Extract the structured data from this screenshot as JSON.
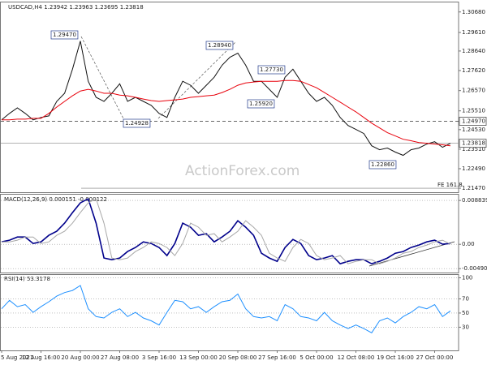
{
  "chart_data": [
    {
      "type": "line",
      "title": "USDCAD,H4  1.23942 1.23963 1.23695 1.23818",
      "series": [
        {
          "color": "#111111",
          "values": [
            1.2504,
            1.2538,
            1.2567,
            1.2538,
            1.2504,
            1.2517,
            1.2525,
            1.2601,
            1.2643,
            1.2769,
            1.2916,
            1.2706,
            1.2622,
            1.2601,
            1.2643,
            1.2693,
            1.2601,
            1.2622,
            1.2601,
            1.258,
            1.2538,
            1.2517,
            1.2622,
            1.2706,
            1.2685,
            1.2643,
            1.2685,
            1.2727,
            1.279,
            1.2832,
            1.2853,
            1.279,
            1.2706,
            1.2706,
            1.2664,
            1.2622,
            1.2727,
            1.2769,
            1.2706,
            1.2643,
            1.2601,
            1.2622,
            1.258,
            1.2517,
            1.2475,
            1.2454,
            1.2433,
            1.2369,
            1.2348,
            1.2357,
            1.2336,
            1.2319,
            1.2348,
            1.2357,
            1.2378,
            1.239,
            1.2361,
            1.23818
          ]
        },
        {
          "color": "#e8000b",
          "values": [
            1.2504,
            1.2504,
            1.2508,
            1.2508,
            1.2512,
            1.2512,
            1.2538,
            1.2571,
            1.2601,
            1.263,
            1.2655,
            1.2664,
            1.2655,
            1.2643,
            1.2643,
            1.2634,
            1.263,
            1.2622,
            1.2613,
            1.2605,
            1.2601,
            1.2605,
            1.2609,
            1.2613,
            1.2622,
            1.2626,
            1.263,
            1.2634,
            1.2647,
            1.2664,
            1.2685,
            1.2697,
            1.2702,
            1.2706,
            1.2706,
            1.2706,
            1.271,
            1.271,
            1.2706,
            1.2689,
            1.2672,
            1.2647,
            1.2622,
            1.2597,
            1.2571,
            1.2546,
            1.2517,
            1.2487,
            1.2462,
            1.2437,
            1.242,
            1.2403,
            1.2395,
            1.2386,
            1.2382,
            1.2378,
            1.2374,
            1.2369
          ]
        }
      ],
      "ylim": [
        1.2126,
        1.3118
      ],
      "yticks": [
        {
          "value": 1.3068,
          "label": "1.30680"
        },
        {
          "value": 1.2961,
          "label": "1.29610"
        },
        {
          "value": 1.2864,
          "label": "1.28640"
        },
        {
          "value": 1.2762,
          "label": "1.27620"
        },
        {
          "value": 1.2657,
          "label": "1.26570"
        },
        {
          "value": 1.2551,
          "label": "1.25510"
        },
        {
          "value": 1.2453,
          "label": "1.24530"
        },
        {
          "value": 1.2351,
          "label": "1.23510"
        },
        {
          "value": 1.2249,
          "label": "1.22490"
        },
        {
          "value": 1.2147,
          "label": "1.21470"
        }
      ],
      "hlines": [
        {
          "value": 1.2497,
          "label": "1.24970",
          "dashed": true
        },
        {
          "value": 1.23818,
          "label": "1.23818",
          "dashed": false
        }
      ],
      "annotations": [
        "1.29470",
        "1.24928",
        "1.28940",
        "1.27730",
        "1.25920",
        "1.22860",
        "FE 161.8"
      ],
      "watermark": "ActionForex.com"
    },
    {
      "type": "line",
      "title": "MACD(12,26,9) 0.000151 -0.000122",
      "series": [
        {
          "color": "#00008b",
          "values": [
            0.00049,
            0.00082,
            0.00147,
            0.00147,
            0.00016,
            0.00049,
            0.0018,
            0.00262,
            0.00426,
            0.00639,
            0.00835,
            0.00917,
            0.00426,
            -0.00278,
            -0.00311,
            -0.00278,
            -0.00147,
            -0.00065,
            0.00049,
            0.00016,
            -0.00065,
            -0.00229,
            0.00016,
            0.00426,
            0.00344,
            0.0018,
            0.00213,
            0.00049,
            0.00147,
            0.00262,
            0.00475,
            0.00344,
            0.0018,
            -0.0018,
            -0.00278,
            -0.00344,
            -0.00065,
            0.00098,
            0.00016,
            -0.00229,
            -0.00311,
            -0.00278,
            -0.00229,
            -0.00393,
            -0.00344,
            -0.00311,
            -0.00311,
            -0.00393,
            -0.00344,
            -0.00278,
            -0.0018,
            -0.00147,
            -0.00065,
            -0.00016,
            0.00049,
            0.00082,
            0,
            0.00016
          ]
        },
        {
          "color": "#a8a8a8",
          "values": [
            0.00049,
            0.00049,
            0.00082,
            0.00147,
            0.00147,
            0.00016,
            0.00049,
            0.0018,
            0.00262,
            0.00426,
            0.00639,
            0.00835,
            0.00917,
            0.00426,
            -0.00278,
            -0.00311,
            -0.00278,
            -0.00147,
            -0.00065,
            0.00049,
            0.00016,
            -0.00065,
            -0.00229,
            0.00016,
            0.00426,
            0.00344,
            0.0018,
            0.00213,
            0.00049,
            0.00147,
            0.00262,
            0.00475,
            0.00344,
            0.0018,
            -0.0018,
            -0.00278,
            -0.00344,
            -0.00065,
            0.00098,
            0.00016,
            -0.00229,
            -0.00311,
            -0.00278,
            -0.00229,
            -0.00393,
            -0.00344,
            -0.00311,
            -0.00311,
            -0.00393,
            -0.00344,
            -0.00278,
            -0.0018,
            -0.00147,
            -0.00065,
            -0.00016,
            0.00049,
            0.00082,
            0
          ]
        }
      ],
      "ylim": [
        -0.0057,
        0.01
      ],
      "yticks": [
        0.008839,
        {
          "value": 0,
          "label": "0.00"
        },
        -0.004907
      ]
    },
    {
      "type": "line",
      "title": "RSI(14) 53.3178",
      "categories": [
        "5 Aug 2021",
        null,
        null,
        null,
        null,
        "12 Aug 16:00",
        null,
        null,
        null,
        null,
        "20 Aug 00:00",
        null,
        null,
        null,
        null,
        "27 Aug 08:00",
        null,
        null,
        null,
        null,
        "3 Sep 16:00",
        null,
        null,
        null,
        null,
        "13 Sep 00:00",
        null,
        null,
        null,
        null,
        "20 Sep 08:00",
        null,
        null,
        null,
        null,
        "27 Sep 16:00",
        null,
        null,
        null,
        null,
        "5 Oct 00:00",
        null,
        null,
        null,
        null,
        "12 Oct 08:00",
        null,
        null,
        null,
        null,
        "19 Oct 16:00",
        null,
        null,
        null,
        null,
        "27 Oct 00:00",
        null,
        null
      ],
      "series": [
        {
          "color": "#1e90ff",
          "values": [
            56,
            68,
            59,
            62,
            51,
            59,
            66,
            74,
            79,
            82,
            89,
            56,
            45,
            43,
            51,
            56,
            45,
            51,
            43,
            39,
            33,
            51,
            68,
            66,
            56,
            59,
            51,
            59,
            66,
            68,
            77,
            56,
            45,
            43,
            45,
            39,
            62,
            56,
            45,
            43,
            39,
            51,
            39,
            33,
            28,
            33,
            28,
            22,
            39,
            43,
            36,
            45,
            51,
            59,
            56,
            62,
            45,
            53
          ]
        }
      ],
      "ylim": [
        -3,
        104
      ],
      "yticks": [
        100,
        70,
        50,
        30
      ]
    }
  ]
}
